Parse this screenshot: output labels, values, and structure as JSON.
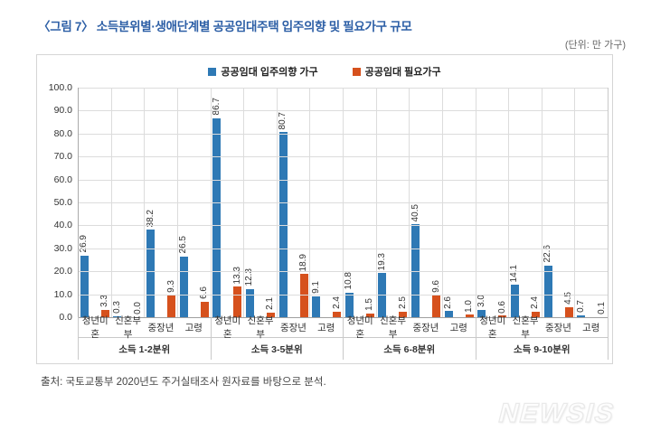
{
  "title": "〈그림 7〉 소득분위별·생애단계별 공공임대주택 입주의향 및 필요가구 규모",
  "unit_note": "(단위: 만 가구)",
  "source": "출처: 국토교통부 2020년도 주거실태조사 원자료를 바탕으로 분석.",
  "watermark": "NEWSIS",
  "colors": {
    "title_navy": "#2D5FA6",
    "intent_blue": "#2E79B5",
    "need_orange": "#D6511D",
    "grid_gray": "#DCDCDC",
    "border_gray": "#D5D5D5"
  },
  "chart_data": {
    "type": "bar",
    "title": "소득분위별·생애단계별 공공임대주택 입주의향 및 필요가구 규모",
    "unit": "만 가구",
    "groups": [
      "소득 1-2분위",
      "소득 3-5분위",
      "소득 6-8분위",
      "소득 9-10분위"
    ],
    "categories": [
      "청년미혼",
      "신혼부부",
      "중장년",
      "고령"
    ],
    "series": [
      {
        "name": "공공임대 입주의향 가구",
        "color": "#2E79B5",
        "values": [
          [
            26.9,
            0.3,
            38.2,
            26.5
          ],
          [
            86.7,
            12.3,
            80.7,
            9.1
          ],
          [
            10.8,
            19.3,
            40.5,
            2.6
          ],
          [
            3.0,
            14.1,
            22.6,
            0.7
          ]
        ]
      },
      {
        "name": "공공임대 필요가구",
        "color": "#D6511D",
        "values": [
          [
            3.3,
            0.0,
            9.3,
            6.6
          ],
          [
            13.3,
            2.1,
            18.9,
            2.4
          ],
          [
            1.5,
            2.5,
            9.6,
            1.0
          ],
          [
            0.6,
            2.4,
            4.5,
            0.1
          ]
        ]
      }
    ],
    "ylim": [
      0,
      100
    ],
    "ytick_step": 10,
    "ytick_format": "one_decimal",
    "grid": true,
    "legend_position": "top"
  }
}
